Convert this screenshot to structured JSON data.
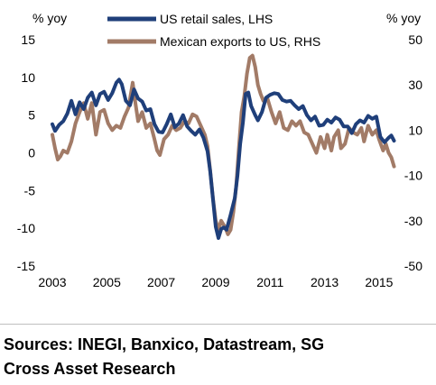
{
  "chart_data": {
    "type": "line",
    "left_axis_title": "% yoy",
    "right_axis_title": "% yoy",
    "left_ylim": [
      -15,
      15
    ],
    "right_ylim": [
      -50,
      50
    ],
    "left_ticks": [
      "15",
      "10",
      "5",
      "0",
      "-5",
      "-10",
      "-15"
    ],
    "right_ticks": [
      "50",
      "30",
      "10",
      "-10",
      "-30",
      "-50"
    ],
    "x_ticks": [
      "2003",
      "2005",
      "2007",
      "2009",
      "2011",
      "2013",
      "2015"
    ],
    "xlim": [
      2003.0,
      2015.6
    ],
    "grid": false,
    "legend_position": "top",
    "series": [
      {
        "name": "US retail sales, LHS",
        "axis": "left",
        "color": "#1f3f7a",
        "points": [
          [
            2003.0,
            3.8
          ],
          [
            2003.1,
            2.9
          ],
          [
            2003.25,
            3.7
          ],
          [
            2003.4,
            4.2
          ],
          [
            2003.55,
            5.2
          ],
          [
            2003.7,
            6.9
          ],
          [
            2003.85,
            5.1
          ],
          [
            2004.0,
            6.7
          ],
          [
            2004.15,
            5.8
          ],
          [
            2004.3,
            7.3
          ],
          [
            2004.45,
            8.0
          ],
          [
            2004.6,
            6.3
          ],
          [
            2004.75,
            7.8
          ],
          [
            2004.9,
            8.1
          ],
          [
            2005.05,
            7.0
          ],
          [
            2005.2,
            7.9
          ],
          [
            2005.35,
            9.3
          ],
          [
            2005.45,
            9.7
          ],
          [
            2005.55,
            9.1
          ],
          [
            2005.7,
            6.9
          ],
          [
            2005.85,
            6.3
          ],
          [
            2006.0,
            8.4
          ],
          [
            2006.15,
            7.2
          ],
          [
            2006.3,
            6.8
          ],
          [
            2006.45,
            5.6
          ],
          [
            2006.6,
            5.8
          ],
          [
            2006.75,
            3.8
          ],
          [
            2006.9,
            2.8
          ],
          [
            2007.05,
            2.7
          ],
          [
            2007.2,
            3.8
          ],
          [
            2007.35,
            5.1
          ],
          [
            2007.5,
            3.4
          ],
          [
            2007.65,
            3.9
          ],
          [
            2007.8,
            5.0
          ],
          [
            2007.95,
            3.5
          ],
          [
            2008.1,
            2.9
          ],
          [
            2008.25,
            2.4
          ],
          [
            2008.4,
            3.1
          ],
          [
            2008.55,
            2.0
          ],
          [
            2008.7,
            0.2
          ],
          [
            2008.8,
            -2.5
          ],
          [
            2008.9,
            -6.1
          ],
          [
            2009.0,
            -9.8
          ],
          [
            2009.1,
            -11.3
          ],
          [
            2009.2,
            -10.1
          ],
          [
            2009.3,
            -9.9
          ],
          [
            2009.4,
            -10.2
          ],
          [
            2009.55,
            -8.2
          ],
          [
            2009.7,
            -6.0
          ],
          [
            2009.8,
            -3.0
          ],
          [
            2009.9,
            1.2
          ],
          [
            2010.0,
            4.0
          ],
          [
            2010.1,
            7.8
          ],
          [
            2010.2,
            8.0
          ],
          [
            2010.3,
            6.2
          ],
          [
            2010.45,
            5.0
          ],
          [
            2010.55,
            4.3
          ],
          [
            2010.7,
            5.4
          ],
          [
            2010.85,
            7.3
          ],
          [
            2011.0,
            7.7
          ],
          [
            2011.15,
            7.9
          ],
          [
            2011.3,
            7.8
          ],
          [
            2011.45,
            7.0
          ],
          [
            2011.6,
            6.8
          ],
          [
            2011.75,
            6.9
          ],
          [
            2011.9,
            6.3
          ],
          [
            2012.05,
            5.8
          ],
          [
            2012.2,
            6.2
          ],
          [
            2012.35,
            5.0
          ],
          [
            2012.5,
            4.3
          ],
          [
            2012.65,
            4.8
          ],
          [
            2012.8,
            3.6
          ],
          [
            2012.95,
            3.7
          ],
          [
            2013.1,
            4.4
          ],
          [
            2013.25,
            4.0
          ],
          [
            2013.4,
            4.7
          ],
          [
            2013.55,
            4.4
          ],
          [
            2013.7,
            3.5
          ],
          [
            2013.85,
            3.5
          ],
          [
            2014.0,
            2.6
          ],
          [
            2014.15,
            3.8
          ],
          [
            2014.3,
            4.3
          ],
          [
            2014.45,
            4.0
          ],
          [
            2014.6,
            4.9
          ],
          [
            2014.75,
            4.5
          ],
          [
            2014.9,
            4.8
          ],
          [
            2015.05,
            2.1
          ],
          [
            2015.2,
            1.4
          ],
          [
            2015.35,
            2.0
          ],
          [
            2015.45,
            2.3
          ],
          [
            2015.55,
            1.6
          ]
        ]
      },
      {
        "name": "Mexican exports to US, RHS",
        "axis": "right",
        "color": "#a27b67",
        "points": [
          [
            2003.0,
            8.0
          ],
          [
            2003.1,
            2.0
          ],
          [
            2003.2,
            -3.0
          ],
          [
            2003.3,
            -1.5
          ],
          [
            2003.4,
            1.0
          ],
          [
            2003.55,
            0.0
          ],
          [
            2003.7,
            5.0
          ],
          [
            2003.85,
            13.0
          ],
          [
            2004.0,
            18.0
          ],
          [
            2004.15,
            22.0
          ],
          [
            2004.3,
            15.0
          ],
          [
            2004.45,
            22.0
          ],
          [
            2004.6,
            8.0
          ],
          [
            2004.75,
            18.0
          ],
          [
            2004.9,
            19.0
          ],
          [
            2005.05,
            13.0
          ],
          [
            2005.2,
            10.0
          ],
          [
            2005.35,
            12.0
          ],
          [
            2005.5,
            11.0
          ],
          [
            2005.65,
            16.0
          ],
          [
            2005.8,
            20.0
          ],
          [
            2005.95,
            31.0
          ],
          [
            2006.05,
            22.0
          ],
          [
            2006.15,
            14.0
          ],
          [
            2006.3,
            18.0
          ],
          [
            2006.45,
            11.0
          ],
          [
            2006.6,
            13.0
          ],
          [
            2006.75,
            6.0
          ],
          [
            2006.85,
            1.0
          ],
          [
            2006.95,
            -1.0
          ],
          [
            2007.1,
            6.0
          ],
          [
            2007.25,
            8.0
          ],
          [
            2007.4,
            12.0
          ],
          [
            2007.55,
            10.0
          ],
          [
            2007.7,
            11.0
          ],
          [
            2007.85,
            14.0
          ],
          [
            2008.0,
            13.0
          ],
          [
            2008.15,
            17.0
          ],
          [
            2008.3,
            16.0
          ],
          [
            2008.45,
            12.0
          ],
          [
            2008.6,
            8.0
          ],
          [
            2008.7,
            3.0
          ],
          [
            2008.8,
            -8.0
          ],
          [
            2008.9,
            -20.0
          ],
          [
            2009.0,
            -30.0
          ],
          [
            2009.1,
            -34.0
          ],
          [
            2009.2,
            -30.0
          ],
          [
            2009.35,
            -33.0
          ],
          [
            2009.45,
            -36.0
          ],
          [
            2009.55,
            -34.0
          ],
          [
            2009.65,
            -26.0
          ],
          [
            2009.75,
            -15.0
          ],
          [
            2009.85,
            2.0
          ],
          [
            2009.95,
            18.0
          ],
          [
            2010.05,
            25.0
          ],
          [
            2010.15,
            35.0
          ],
          [
            2010.25,
            42.0
          ],
          [
            2010.35,
            43.0
          ],
          [
            2010.45,
            38.0
          ],
          [
            2010.55,
            30.0
          ],
          [
            2010.65,
            26.0
          ],
          [
            2010.75,
            23.0
          ],
          [
            2010.9,
            24.0
          ],
          [
            2011.05,
            18.0
          ],
          [
            2011.2,
            13.0
          ],
          [
            2011.35,
            18.0
          ],
          [
            2011.5,
            11.0
          ],
          [
            2011.65,
            10.0
          ],
          [
            2011.8,
            14.0
          ],
          [
            2011.95,
            12.0
          ],
          [
            2012.1,
            14.0
          ],
          [
            2012.25,
            9.0
          ],
          [
            2012.4,
            8.0
          ],
          [
            2012.55,
            4.0
          ],
          [
            2012.7,
            0.0
          ],
          [
            2012.85,
            7.0
          ],
          [
            2013.0,
            2.0
          ],
          [
            2013.1,
            8.0
          ],
          [
            2013.25,
            1.0
          ],
          [
            2013.35,
            7.0
          ],
          [
            2013.5,
            10.0
          ],
          [
            2013.6,
            2.0
          ],
          [
            2013.75,
            4.0
          ],
          [
            2013.9,
            11.0
          ],
          [
            2014.05,
            9.0
          ],
          [
            2014.2,
            8.0
          ],
          [
            2014.35,
            11.0
          ],
          [
            2014.45,
            5.0
          ],
          [
            2014.6,
            12.0
          ],
          [
            2014.75,
            8.0
          ],
          [
            2014.9,
            10.0
          ],
          [
            2015.0,
            6.0
          ],
          [
            2015.15,
            1.0
          ],
          [
            2015.25,
            4.0
          ],
          [
            2015.35,
            0.0
          ],
          [
            2015.45,
            -2.0
          ],
          [
            2015.55,
            -6.0
          ]
        ]
      }
    ]
  },
  "sources": {
    "line1": "Sources: INEGI, Banxico, Datastream, SG",
    "line2": "Cross Asset Research"
  }
}
